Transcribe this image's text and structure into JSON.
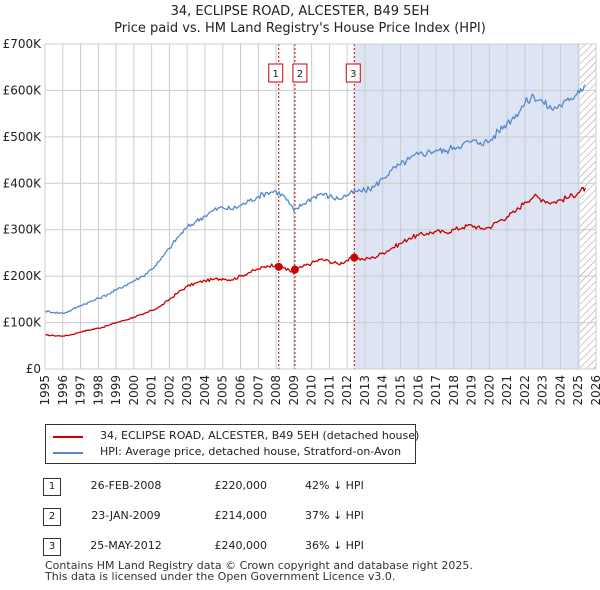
{
  "title": "34, ECLIPSE ROAD, ALCESTER, B49 5EH",
  "subtitle": "Price paid vs. HM Land Registry's House Price Index (HPI)",
  "colors": {
    "price": "#cc0000",
    "hpi": "#5588cc",
    "shade": "#dde4f4",
    "grid": "#cccccc",
    "marker": "#cc0000"
  },
  "legend": {
    "price_label": "34, ECLIPSE ROAD, ALCESTER, B49 5EH (detached house)",
    "hpi_label": "HPI: Average price, detached house, Stratford-on-Avon"
  },
  "sales": [
    {
      "num": "1",
      "date": "26-FEB-2008",
      "price": "£220,000",
      "hpi": "42% ↓ HPI"
    },
    {
      "num": "2",
      "date": "23-JAN-2009",
      "price": "£214,000",
      "hpi": "37% ↓ HPI"
    },
    {
      "num": "3",
      "date": "25-MAY-2012",
      "price": "£240,000",
      "hpi": "36% ↓ HPI"
    }
  ],
  "footer": {
    "line1": "Contains HM Land Registry data © Crown copyright and database right 2025.",
    "line2": "This data is licensed under the Open Government Licence v3.0."
  },
  "chart_data": {
    "type": "line",
    "title": "34, ECLIPSE ROAD, ALCESTER, B49 5EH",
    "subtitle": "Price paid vs. HM Land Registry's House Price Index (HPI)",
    "xlim": [
      1995,
      2026
    ],
    "ylim": [
      0,
      700000
    ],
    "x_ticks": [
      "1995",
      "1996",
      "1997",
      "1998",
      "1999",
      "2000",
      "2001",
      "2002",
      "2003",
      "2004",
      "2005",
      "2006",
      "2007",
      "2008",
      "2009",
      "2010",
      "2011",
      "2012",
      "2013",
      "2014",
      "2015",
      "2016",
      "2017",
      "2018",
      "2019",
      "2020",
      "2021",
      "2022",
      "2023",
      "2024",
      "2025",
      "2026"
    ],
    "y_ticks": [
      {
        "value": 0,
        "label": "£0"
      },
      {
        "value": 100000,
        "label": "£100K"
      },
      {
        "value": 200000,
        "label": "£200K"
      },
      {
        "value": 300000,
        "label": "£300K"
      },
      {
        "value": 400000,
        "label": "£400K"
      },
      {
        "value": 500000,
        "label": "£500K"
      },
      {
        "value": 600000,
        "label": "£600K"
      },
      {
        "value": 700000,
        "label": "£700K"
      }
    ],
    "shaded_range": [
      2012.4,
      2025.1
    ],
    "hatch_from": 2025.1,
    "series": [
      {
        "name": "34, ECLIPSE ROAD, ALCESTER, B49 5EH (detached house)",
        "color": "#cc0000",
        "x": [
          1995.0,
          1995.5,
          1996.0,
          1996.5,
          1997.0,
          1997.5,
          1998.0,
          1998.5,
          1999.0,
          1999.5,
          2000.0,
          2000.5,
          2001.0,
          2001.5,
          2002.0,
          2002.5,
          2003.0,
          2003.5,
          2004.0,
          2004.5,
          2005.0,
          2005.5,
          2006.0,
          2006.5,
          2007.0,
          2007.5,
          2008.0,
          2008.15,
          2008.5,
          2009.0,
          2009.06,
          2009.5,
          2010.0,
          2010.5,
          2011.0,
          2011.5,
          2012.0,
          2012.4,
          2012.9,
          2013.5,
          2014.0,
          2014.5,
          2015.0,
          2015.5,
          2016.0,
          2016.5,
          2017.0,
          2017.5,
          2018.0,
          2018.5,
          2019.0,
          2019.5,
          2020.0,
          2020.5,
          2021.0,
          2021.5,
          2022.0,
          2022.5,
          2023.0,
          2023.5,
          2024.0,
          2024.5,
          2025.0,
          2025.4
        ],
        "values": [
          73000,
          72000,
          71000,
          74000,
          80000,
          84000,
          88000,
          93000,
          100000,
          105000,
          112000,
          117000,
          126000,
          135000,
          150000,
          165000,
          178000,
          185000,
          190000,
          193000,
          195000,
          192000,
          200000,
          208000,
          215000,
          222000,
          225000,
          220000,
          218000,
          205000,
          214000,
          220000,
          228000,
          236000,
          232000,
          226000,
          234000,
          240000,
          236000,
          240000,
          250000,
          260000,
          270000,
          282000,
          288000,
          292000,
          296000,
          294000,
          300000,
          305000,
          310000,
          302000,
          305000,
          318000,
          328000,
          340000,
          360000,
          372000,
          365000,
          358000,
          364000,
          370000,
          380000,
          390000
        ]
      },
      {
        "name": "HPI: Average price, detached house, Stratford-on-Avon",
        "color": "#5588cc",
        "x": [
          1995.0,
          1995.5,
          1996.0,
          1996.5,
          1997.0,
          1997.5,
          1998.0,
          1998.5,
          1999.0,
          1999.5,
          2000.0,
          2000.5,
          2001.0,
          2001.5,
          2002.0,
          2002.5,
          2003.0,
          2003.5,
          2004.0,
          2004.5,
          2005.0,
          2005.5,
          2006.0,
          2006.5,
          2007.0,
          2007.5,
          2008.0,
          2008.5,
          2009.0,
          2009.5,
          2010.0,
          2010.5,
          2011.0,
          2011.5,
          2012.0,
          2012.5,
          2013.0,
          2013.5,
          2014.0,
          2014.5,
          2015.0,
          2015.5,
          2016.0,
          2016.5,
          2017.0,
          2017.5,
          2018.0,
          2018.5,
          2019.0,
          2019.5,
          2020.0,
          2020.5,
          2021.0,
          2021.5,
          2022.0,
          2022.5,
          2023.0,
          2023.5,
          2024.0,
          2024.5,
          2025.0,
          2025.4
        ],
        "values": [
          125000,
          122000,
          120000,
          127000,
          137000,
          144000,
          152000,
          160000,
          170000,
          180000,
          190000,
          200000,
          215000,
          235000,
          260000,
          285000,
          305000,
          318000,
          330000,
          342000,
          348000,
          344000,
          352000,
          362000,
          372000,
          380000,
          383000,
          370000,
          340000,
          355000,
          368000,
          378000,
          372000,
          366000,
          375000,
          382000,
          384000,
          392000,
          410000,
          428000,
          440000,
          452000,
          462000,
          466000,
          472000,
          468000,
          478000,
          484000,
          490000,
          488000,
          490000,
          512000,
          530000,
          548000,
          572000,
          588000,
          575000,
          560000,
          568000,
          578000,
          600000,
          612000
        ]
      }
    ],
    "sales": [
      {
        "label": "1",
        "x": 2008.15,
        "y": 220000
      },
      {
        "label": "2",
        "x": 2009.06,
        "y": 214000
      },
      {
        "label": "3",
        "x": 2012.4,
        "y": 240000
      }
    ]
  }
}
